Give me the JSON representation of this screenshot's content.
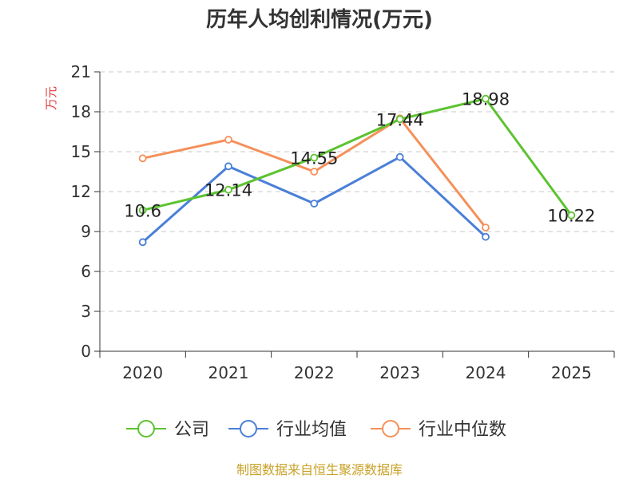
{
  "chart_data": {
    "type": "line",
    "title": "历年人均创利情况(万元)",
    "ylabel": "万元",
    "xlabel": "",
    "categories": [
      "2020",
      "2021",
      "2022",
      "2023",
      "2024",
      "2025"
    ],
    "ylim": [
      0,
      21
    ],
    "yticks": [
      0,
      3,
      6,
      9,
      12,
      15,
      18,
      21
    ],
    "grid": true,
    "legend_position": "bottom",
    "series": [
      {
        "name": "公司",
        "color": "#5cc330",
        "values": [
          10.6,
          12.14,
          14.55,
          17.44,
          18.98,
          10.22
        ],
        "labels": [
          "10.6",
          "12.14",
          "14.55",
          "17.44",
          "18.98",
          "10.22"
        ]
      },
      {
        "name": "行业均值",
        "color": "#4a7fd8",
        "values": [
          8.2,
          13.9,
          11.1,
          14.6,
          8.6,
          null
        ]
      },
      {
        "name": "行业中位数",
        "color": "#f5905a",
        "values": [
          14.5,
          15.9,
          13.5,
          17.5,
          9.3,
          null
        ]
      }
    ]
  },
  "source": "制图数据来自恒生聚源数据库",
  "colors": {
    "ylabel": "#e23b3b",
    "source": "#c9a227"
  }
}
